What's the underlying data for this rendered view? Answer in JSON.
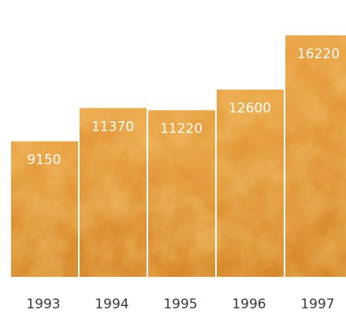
{
  "chart_data": {
    "type": "bar",
    "categories": [
      "1993",
      "1994",
      "1995",
      "1996",
      "1997"
    ],
    "values": [
      9150,
      11370,
      11220,
      12600,
      16220
    ],
    "data_labels": [
      "9150",
      "11370",
      "11220",
      "12600",
      "16220"
    ],
    "title": "",
    "xlabel": "",
    "ylabel": "",
    "ylim": [
      0,
      18000
    ],
    "grid": false,
    "legend": "none"
  },
  "colors": {
    "bar_light": "#f2b75a",
    "bar_mid": "#e3952a",
    "bar_dark": "#b8651a",
    "bar_outline": "#ffffff",
    "tick_text": "#3a3a3a",
    "label_text": "#ffffff"
  }
}
